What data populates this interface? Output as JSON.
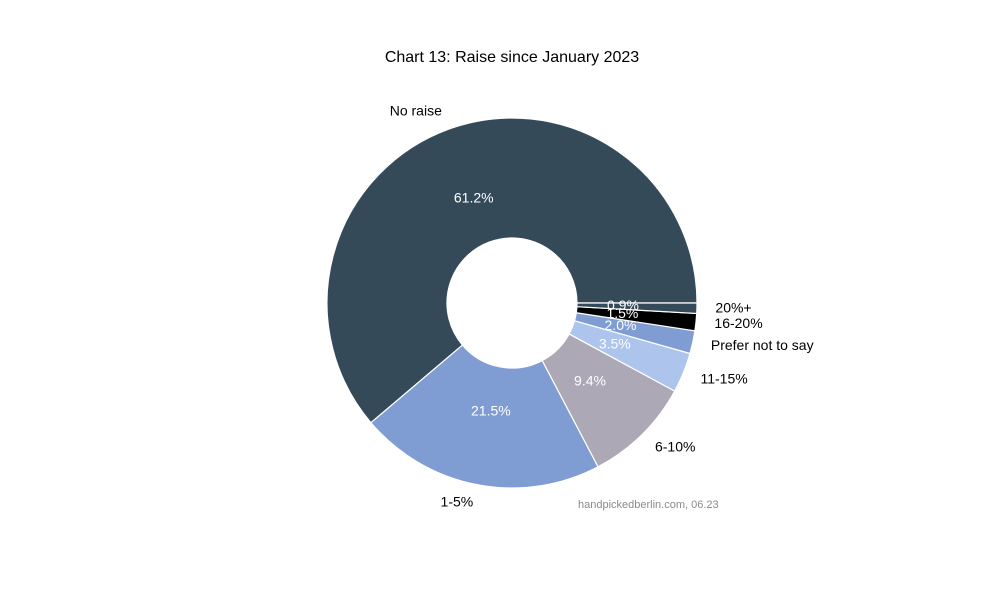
{
  "chart_data": {
    "type": "pie",
    "title": "Chart 13: Raise since January 2023",
    "categories": [
      "No raise",
      "1-5%",
      "6-10%",
      "11-15%",
      "Prefer not to say",
      "16-20%",
      "20%+"
    ],
    "values": [
      61.2,
      21.5,
      9.4,
      3.5,
      2.0,
      1.5,
      0.9
    ],
    "value_labels": [
      "61.2%",
      "21.5%",
      "9.4%",
      "3.5%",
      "2.0%",
      "1.5%",
      "0.9%"
    ],
    "colors": [
      "#344a59",
      "#7f9dd3",
      "#aca8b5",
      "#adc4ec",
      "#7f9dd3",
      "#000000",
      "#344a59"
    ],
    "source": "handpickedberlin.com, 06.23"
  }
}
